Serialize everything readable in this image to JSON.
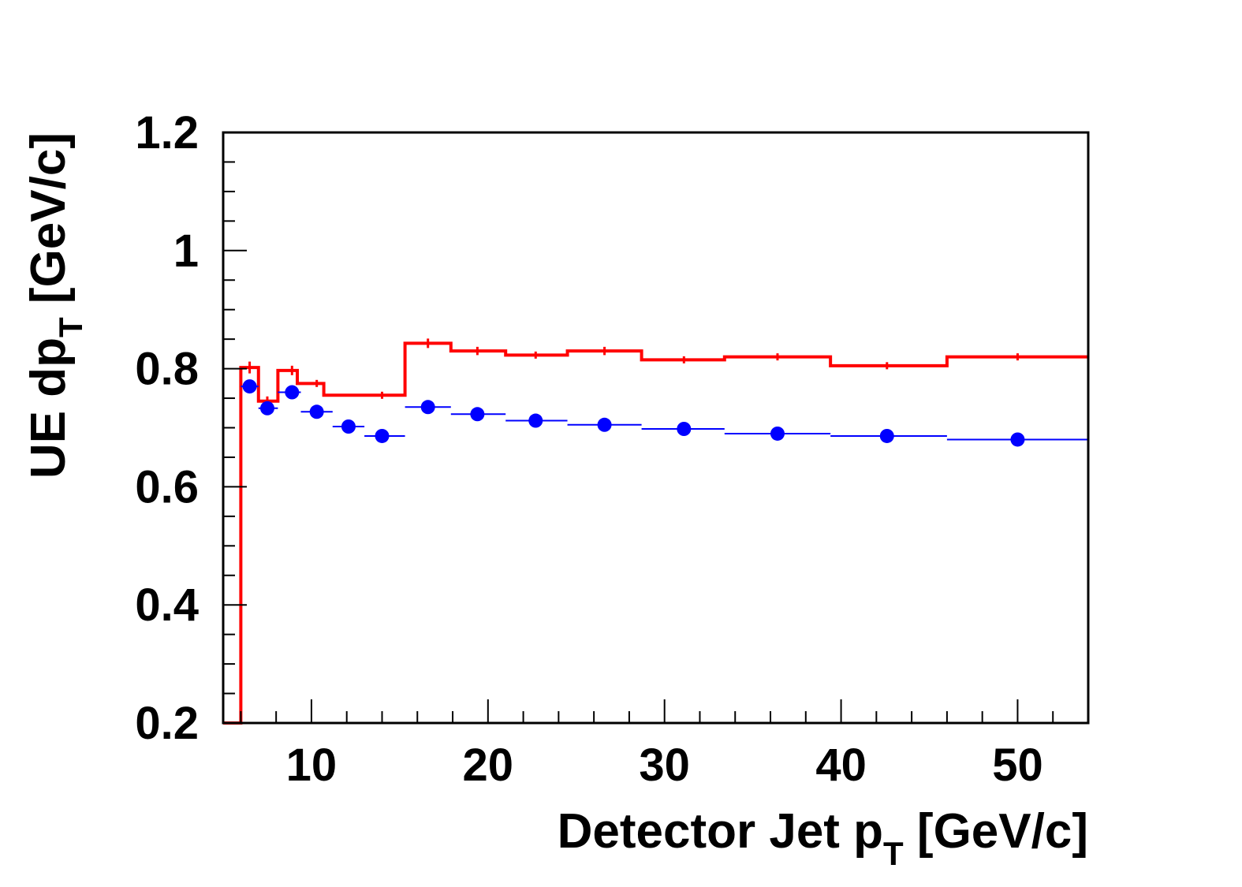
{
  "chart_data": {
    "type": "line",
    "title": "",
    "xlabel": {
      "main": "Detector Jet p",
      "sub": "T",
      "unit": " [GeV/c]"
    },
    "ylabel": {
      "main": "UE dp",
      "sub": "T",
      "unit": " [GeV/c]"
    },
    "xlim": [
      5,
      54
    ],
    "ylim": [
      0.2,
      1.2
    ],
    "x_ticks": [
      10,
      20,
      30,
      40,
      50
    ],
    "x_tick_labels": [
      "10",
      "20",
      "30",
      "40",
      "50"
    ],
    "y_ticks": [
      0.2,
      0.4,
      0.6,
      0.8,
      1.0,
      1.2
    ],
    "y_tick_labels": [
      "0.2",
      "0.4",
      "0.6",
      "0.8",
      "1",
      "1.2"
    ],
    "grid": false,
    "series": [
      {
        "style": "step",
        "color": "#ff0000",
        "bin_edges": [
          5,
          6,
          7,
          8.1,
          9.2,
          10.7,
          11.2,
          15.3,
          17.9,
          21.0,
          24.5,
          28.7,
          33.4,
          39.4,
          46.0,
          54
        ],
        "values": [
          0.2,
          0.802,
          0.745,
          0.797,
          0.775,
          0.755,
          0.755,
          0.843,
          0.83,
          0.823,
          0.83,
          0.815,
          0.82,
          0.805,
          0.82
        ],
        "errors": [
          0,
          0.01,
          0.008,
          0.008,
          0.006,
          0.006,
          0.006,
          0.008,
          0.007,
          0.006,
          0.007,
          0.006,
          0.006,
          0.006,
          0.006
        ],
        "error_marker_x": [
          null,
          6.5,
          7.5,
          8.9,
          10.3,
          null,
          14.0,
          16.6,
          19.4,
          22.7,
          26.6,
          31.1,
          36.4,
          42.6,
          50.0
        ]
      },
      {
        "style": "markers",
        "color": "#0000ff",
        "x": [
          6.5,
          7.5,
          8.9,
          10.3,
          12.1,
          14.0,
          16.6,
          19.4,
          22.7,
          26.6,
          31.1,
          36.4,
          42.6,
          50.0
        ],
        "y": [
          0.77,
          0.733,
          0.76,
          0.727,
          0.702,
          0.686,
          0.735,
          0.723,
          0.712,
          0.705,
          0.698,
          0.69,
          0.686,
          0.68
        ],
        "x_low": [
          6.0,
          7.0,
          8.1,
          9.4,
          11.2,
          13.0,
          15.3,
          17.9,
          21.0,
          24.5,
          28.7,
          33.4,
          39.4,
          46.0
        ],
        "x_high": [
          7.0,
          8.1,
          9.4,
          11.2,
          13.0,
          15.3,
          17.9,
          21.0,
          24.5,
          28.7,
          33.4,
          39.4,
          46.0,
          54.0
        ]
      }
    ]
  }
}
